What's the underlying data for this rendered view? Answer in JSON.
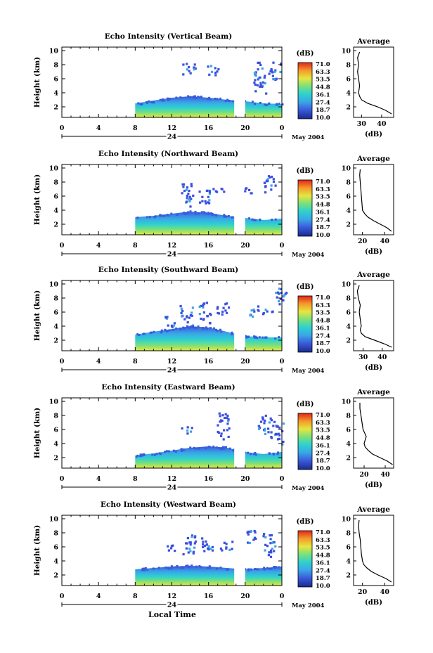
{
  "figure": {
    "local_time_label": "Local Time"
  },
  "chart_data": [
    {
      "type": "heatmap",
      "title": "Echo Intensity (Vertical Beam)",
      "ylabel": "Height (km)",
      "y_ticks": [
        "2",
        "4",
        "6",
        "8",
        "10"
      ],
      "x_ticks": [
        "0",
        "4",
        "8",
        "12",
        "16",
        "20",
        "0"
      ],
      "date_day": "24",
      "date_label": "May 2004",
      "xlim": [
        0,
        24
      ],
      "ylim": [
        0.5,
        10.5
      ],
      "colorbar": {
        "unit": "(dB)",
        "ticks": [
          "71.0",
          "63.3",
          "53.5",
          "44.8",
          "36.1",
          "27.4",
          "18.7",
          "10.0"
        ]
      },
      "echo_layer": {
        "start_hour": 8.0,
        "end_hour": 24.0,
        "top_km": [
          2.5,
          2.9,
          3.3,
          3.5,
          3.3,
          3.0,
          2.8,
          2.5,
          2.4
        ],
        "gap_hours": [
          [
            18.8,
            20.0
          ]
        ]
      },
      "sparse_echo": [
        [
          13.8,
          6.5,
          8.5
        ],
        [
          16.5,
          6.5,
          8.0
        ],
        [
          21.5,
          4.0,
          8.5
        ],
        [
          23.2,
          6.0,
          8.8
        ]
      ],
      "average_profile": {
        "title": "Average",
        "xlabel": "(dB)",
        "x_ticks": [
          "30",
          "40"
        ],
        "xlim": [
          26,
          46
        ],
        "y_ticks": [
          "2",
          "4",
          "6",
          "8",
          "10"
        ],
        "height_km": [
          1,
          1.5,
          2,
          2.5,
          3,
          3.5,
          4,
          5,
          6,
          7,
          8,
          9,
          9.8
        ],
        "db": [
          45,
          42,
          38,
          33,
          30,
          29,
          28.5,
          29,
          28.5,
          28,
          28.5,
          28,
          29
        ]
      }
    },
    {
      "type": "heatmap",
      "title": "Echo Intensity (Northward Beam)",
      "ylabel": "Height (km)",
      "y_ticks": [
        "2",
        "4",
        "6",
        "8",
        "10"
      ],
      "x_ticks": [
        "0",
        "4",
        "8",
        "12",
        "16",
        "20",
        "0"
      ],
      "date_day": "24",
      "date_label": "May 2004",
      "xlim": [
        0,
        24
      ],
      "ylim": [
        0.5,
        10.5
      ],
      "colorbar": {
        "unit": "(dB)",
        "ticks": [
          "71.0",
          "63.3",
          "53.5",
          "44.8",
          "36.1",
          "27.4",
          "18.7",
          "10.0"
        ]
      },
      "echo_layer": {
        "start_hour": 8.0,
        "end_hour": 24.0,
        "top_km": [
          3.0,
          3.2,
          3.5,
          3.8,
          3.6,
          3.2,
          2.9,
          2.6,
          2.8
        ],
        "gap_hours": [
          [
            18.8,
            20.0
          ]
        ]
      },
      "sparse_echo": [
        [
          13.7,
          4.5,
          8.0
        ],
        [
          15.5,
          5.0,
          7.5
        ],
        [
          17.0,
          6.5,
          7.5
        ],
        [
          20.5,
          6.5,
          7.5
        ],
        [
          22.5,
          6.5,
          9.5
        ]
      ],
      "average_profile": {
        "title": "Average",
        "xlabel": "(dB)",
        "x_ticks": [
          "20",
          "40"
        ],
        "xlim": [
          12,
          48
        ],
        "y_ticks": [
          "2",
          "4",
          "6",
          "8",
          "10"
        ],
        "height_km": [
          1,
          1.5,
          2,
          2.5,
          3,
          3.5,
          4,
          5,
          6,
          7,
          8,
          9,
          9.8
        ],
        "db": [
          46,
          42,
          36,
          30,
          25,
          22,
          20,
          19.5,
          19,
          18.5,
          18,
          17.5,
          18
        ]
      }
    },
    {
      "type": "heatmap",
      "title": "Echo Intensity (Southward Beam)",
      "ylabel": "Height (km)",
      "y_ticks": [
        "2",
        "4",
        "6",
        "8",
        "10"
      ],
      "x_ticks": [
        "0",
        "4",
        "8",
        "12",
        "16",
        "20",
        "0"
      ],
      "date_day": "24",
      "date_label": "May 2004",
      "xlim": [
        0,
        24
      ],
      "ylim": [
        0.5,
        10.5
      ],
      "colorbar": {
        "unit": "(dB)",
        "ticks": [
          "71.0",
          "63.3",
          "53.5",
          "44.8",
          "36.1",
          "27.4",
          "18.7",
          "10.0"
        ]
      },
      "echo_layer": {
        "start_hour": 8.0,
        "end_hour": 24.0,
        "top_km": [
          2.8,
          3.2,
          3.6,
          4.0,
          3.8,
          3.2,
          2.6,
          2.4,
          2.4
        ],
        "gap_hours": [
          [
            18.8,
            20.0
          ]
        ]
      },
      "sparse_echo": [
        [
          11.5,
          4.0,
          5.5
        ],
        [
          13.5,
          4.0,
          7.0
        ],
        [
          15.5,
          4.5,
          7.5
        ],
        [
          17.5,
          5.5,
          7.5
        ],
        [
          20.8,
          5.5,
          7.0
        ],
        [
          22.3,
          5.5,
          6.5
        ],
        [
          23.8,
          7.0,
          9.5
        ]
      ],
      "average_profile": {
        "title": "Average",
        "xlabel": "(dB)",
        "x_ticks": [
          "30",
          "40"
        ],
        "xlim": [
          25,
          46
        ],
        "y_ticks": [
          "2",
          "4",
          "6",
          "8",
          "10"
        ],
        "height_km": [
          1,
          1.5,
          2,
          2.5,
          3,
          3.5,
          4,
          5,
          6,
          7,
          8,
          9,
          9.8
        ],
        "db": [
          45,
          41,
          36,
          31,
          29,
          28.5,
          29,
          28.5,
          28,
          28.5,
          27.5,
          27,
          28
        ]
      }
    },
    {
      "type": "heatmap",
      "title": "Echo Intensity (Eastward Beam)",
      "ylabel": "Height (km)",
      "y_ticks": [
        "2",
        "4",
        "6",
        "8",
        "10"
      ],
      "x_ticks": [
        "0",
        "4",
        "8",
        "12",
        "16",
        "20",
        "0"
      ],
      "date_day": "24",
      "date_label": "May 2004",
      "xlim": [
        0,
        24
      ],
      "ylim": [
        0.5,
        10.5
      ],
      "colorbar": {
        "unit": "(dB)",
        "ticks": [
          "71.0",
          "63.3",
          "53.5",
          "44.8",
          "36.1",
          "27.4",
          "18.7",
          "10.0"
        ]
      },
      "echo_layer": {
        "start_hour": 8.0,
        "end_hour": 24.0,
        "top_km": [
          2.3,
          2.6,
          3.0,
          3.4,
          3.6,
          3.4,
          2.8,
          2.5,
          2.8
        ],
        "gap_hours": [
          [
            18.8,
            20.0
          ]
        ]
      },
      "sparse_echo": [
        [
          13.5,
          5.5,
          6.5
        ],
        [
          17.5,
          4.5,
          8.5
        ],
        [
          22.0,
          5.5,
          8.5
        ],
        [
          23.4,
          4.0,
          7.5
        ]
      ],
      "average_profile": {
        "title": "Average",
        "xlabel": "(dB)",
        "x_ticks": [
          "20",
          "40"
        ],
        "xlim": [
          10,
          48
        ],
        "y_ticks": [
          "2",
          "4",
          "6",
          "8",
          "10"
        ],
        "height_km": [
          1,
          1.5,
          2,
          2.5,
          3,
          3.5,
          4,
          5,
          6,
          7,
          8,
          9,
          9.8
        ],
        "db": [
          47,
          42,
          35,
          28,
          24,
          21,
          20,
          22,
          19,
          18,
          17,
          16,
          16
        ]
      }
    },
    {
      "type": "heatmap",
      "title": "Echo Intensity (Westward Beam)",
      "ylabel": "Height (km)",
      "y_ticks": [
        "2",
        "4",
        "6",
        "8",
        "10"
      ],
      "x_ticks": [
        "0",
        "4",
        "8",
        "12",
        "16",
        "20",
        "0"
      ],
      "date_day": "24",
      "date_label": "May 2004",
      "xlim": [
        0,
        24
      ],
      "ylim": [
        0.5,
        10.5
      ],
      "colorbar": {
        "unit": "(dB)",
        "ticks": [
          "71.0",
          "63.3",
          "53.5",
          "44.8",
          "36.1",
          "27.4",
          "18.7",
          "10.0"
        ]
      },
      "echo_layer": {
        "start_hour": 8.0,
        "end_hour": 24.0,
        "top_km": [
          2.8,
          3.0,
          3.2,
          3.3,
          3.2,
          3.0,
          2.8,
          3.0,
          3.2
        ],
        "gap_hours": [
          [
            18.8,
            20.0
          ]
        ]
      },
      "sparse_echo": [
        [
          11.8,
          5.5,
          6.5
        ],
        [
          13.8,
          4.5,
          8.0
        ],
        [
          15.8,
          5.5,
          8.0
        ],
        [
          17.8,
          5.5,
          7.0
        ],
        [
          20.5,
          6.5,
          8.5
        ],
        [
          22.5,
          4.5,
          8.0
        ]
      ],
      "average_profile": {
        "title": "Average",
        "xlabel": "(dB)",
        "x_ticks": [
          "20",
          "40"
        ],
        "xlim": [
          12,
          48
        ],
        "y_ticks": [
          "2",
          "4",
          "6",
          "8",
          "10"
        ],
        "height_km": [
          1,
          1.5,
          2,
          2.5,
          3,
          3.5,
          4,
          5,
          6,
          7,
          8,
          9,
          9.8
        ],
        "db": [
          46,
          41,
          34,
          28,
          24,
          21,
          20,
          19,
          18.5,
          18,
          17,
          16.5,
          17
        ]
      }
    }
  ]
}
